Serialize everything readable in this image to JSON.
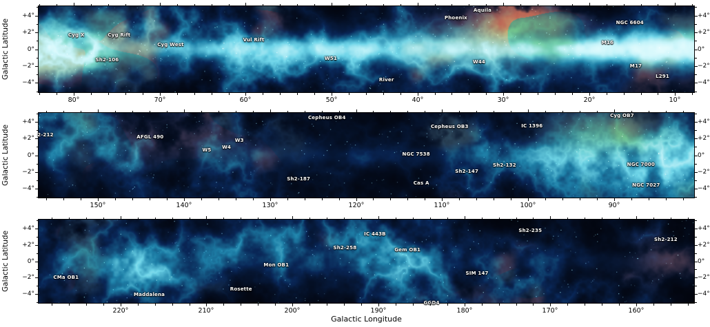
{
  "figure": {
    "xlabel": "Galactic Longitude",
    "ylabel": "Galactic Latitude",
    "colors": {
      "background": "#ffffff",
      "axis_text": "#000000",
      "panel_background": "#010308",
      "faint_nebula": "#092650",
      "filament_cyan": "#2e80a8",
      "bright_core": "#eaffff",
      "warm_tint": "#ea9e58",
      "green_tint": "#76c47a",
      "annotation_text": "#ffffff"
    }
  },
  "chart_data": {
    "type": "heatmap",
    "title": "",
    "xlabel": "Galactic Longitude",
    "ylabel": "Galactic Latitude",
    "legend": "none",
    "grid": false,
    "lat_ticks": [
      {
        "value": 4,
        "label": "+4°"
      },
      {
        "value": 2,
        "label": "+2°"
      },
      {
        "value": 0,
        "label": "0°"
      },
      {
        "value": -2,
        "label": "−2°"
      },
      {
        "value": -4,
        "label": "−4°"
      }
    ],
    "panels": [
      {
        "name": "top",
        "lon_range": [
          84.2,
          7.7
        ],
        "lat_range": [
          5.2,
          -5.2
        ],
        "lon_ticks": [
          80,
          70,
          60,
          50,
          40,
          30,
          20,
          10
        ],
        "annotations": [
          {
            "label": "Cyg X",
            "lon": 79.8,
            "lat": 1.7
          },
          {
            "label": "Cyg Rift",
            "lon": 74.8,
            "lat": 1.7
          },
          {
            "label": "Sh2-106",
            "lon": 76.2,
            "lat": -1.3
          },
          {
            "label": "Cyg West",
            "lon": 68.8,
            "lat": 0.5
          },
          {
            "label": "Vul Rift",
            "lon": 59.1,
            "lat": 1.1
          },
          {
            "label": "W51",
            "lon": 50.1,
            "lat": -1.1
          },
          {
            "label": "River",
            "lon": 43.6,
            "lat": -3.7
          },
          {
            "label": "Phoenix",
            "lon": 35.5,
            "lat": 3.8
          },
          {
            "label": "Aquila",
            "lon": 32.4,
            "lat": 4.7
          },
          {
            "label": "W44",
            "lon": 32.8,
            "lat": -1.5
          },
          {
            "label": "NGC 6604",
            "lon": 15.2,
            "lat": 3.2
          },
          {
            "label": "M16",
            "lon": 17.8,
            "lat": 0.8
          },
          {
            "label": "M17",
            "lon": 14.5,
            "lat": -2.0
          },
          {
            "label": "L291",
            "lon": 11.4,
            "lat": -3.3
          }
        ]
      },
      {
        "name": "middle",
        "lon_range": [
          157.0,
          80.6
        ],
        "lat_range": [
          5.2,
          -5.2
        ],
        "lon_ticks": [
          150,
          140,
          130,
          120,
          110,
          100,
          90
        ],
        "annotations": [
          {
            "label": "2-212",
            "lon": 156.2,
            "lat": 2.5
          },
          {
            "label": "AFGL 490",
            "lon": 144.0,
            "lat": 2.2
          },
          {
            "label": "W5",
            "lon": 137.4,
            "lat": 0.6
          },
          {
            "label": "W4",
            "lon": 135.1,
            "lat": 1.0
          },
          {
            "label": "W3",
            "lon": 133.6,
            "lat": 1.8
          },
          {
            "label": "Cepheus OB4",
            "lon": 123.4,
            "lat": 4.6
          },
          {
            "label": "Cepheus OB3",
            "lon": 109.1,
            "lat": 3.5
          },
          {
            "label": "NGC 7538",
            "lon": 113.0,
            "lat": 0.1
          },
          {
            "label": "Sh2-147",
            "lon": 107.1,
            "lat": -2.0
          },
          {
            "label": "Sh2-187",
            "lon": 126.7,
            "lat": -2.9
          },
          {
            "label": "Cas A",
            "lon": 112.4,
            "lat": -3.4
          },
          {
            "label": "Sh2-132",
            "lon": 102.7,
            "lat": -1.2
          },
          {
            "label": "IC 1396",
            "lon": 99.5,
            "lat": 3.6
          },
          {
            "label": "Cyg OB7",
            "lon": 89.0,
            "lat": 4.9
          },
          {
            "label": "NGC 7000",
            "lon": 86.8,
            "lat": -1.1
          },
          {
            "label": "NGC 7027",
            "lon": 86.2,
            "lat": -3.7
          }
        ]
      },
      {
        "name": "bottom",
        "lon_range": [
          229.6,
          153.2
        ],
        "lat_range": [
          5.2,
          -5.2
        ],
        "lon_ticks": [
          220,
          210,
          200,
          190,
          180,
          170,
          160
        ],
        "annotations": [
          {
            "label": "CMa OB1",
            "lon": 226.4,
            "lat": -2.0
          },
          {
            "label": "Maddalena",
            "lon": 216.7,
            "lat": -4.2
          },
          {
            "label": "Rosette",
            "lon": 206.0,
            "lat": -3.5
          },
          {
            "label": "Mon OB1",
            "lon": 201.9,
            "lat": -0.5
          },
          {
            "label": "Sh2-258",
            "lon": 193.9,
            "lat": 1.7
          },
          {
            "label": "IC 443B",
            "lon": 190.4,
            "lat": 3.4
          },
          {
            "label": "Gem OB1",
            "lon": 186.6,
            "lat": 1.4
          },
          {
            "label": "GGD4",
            "lon": 183.8,
            "lat": -5.2
          },
          {
            "label": "SIM 147",
            "lon": 178.5,
            "lat": -1.5
          },
          {
            "label": "Sh2-235",
            "lon": 172.3,
            "lat": 3.8
          },
          {
            "label": "Sh2-212",
            "lon": 156.5,
            "lat": 2.7
          }
        ]
      }
    ]
  }
}
